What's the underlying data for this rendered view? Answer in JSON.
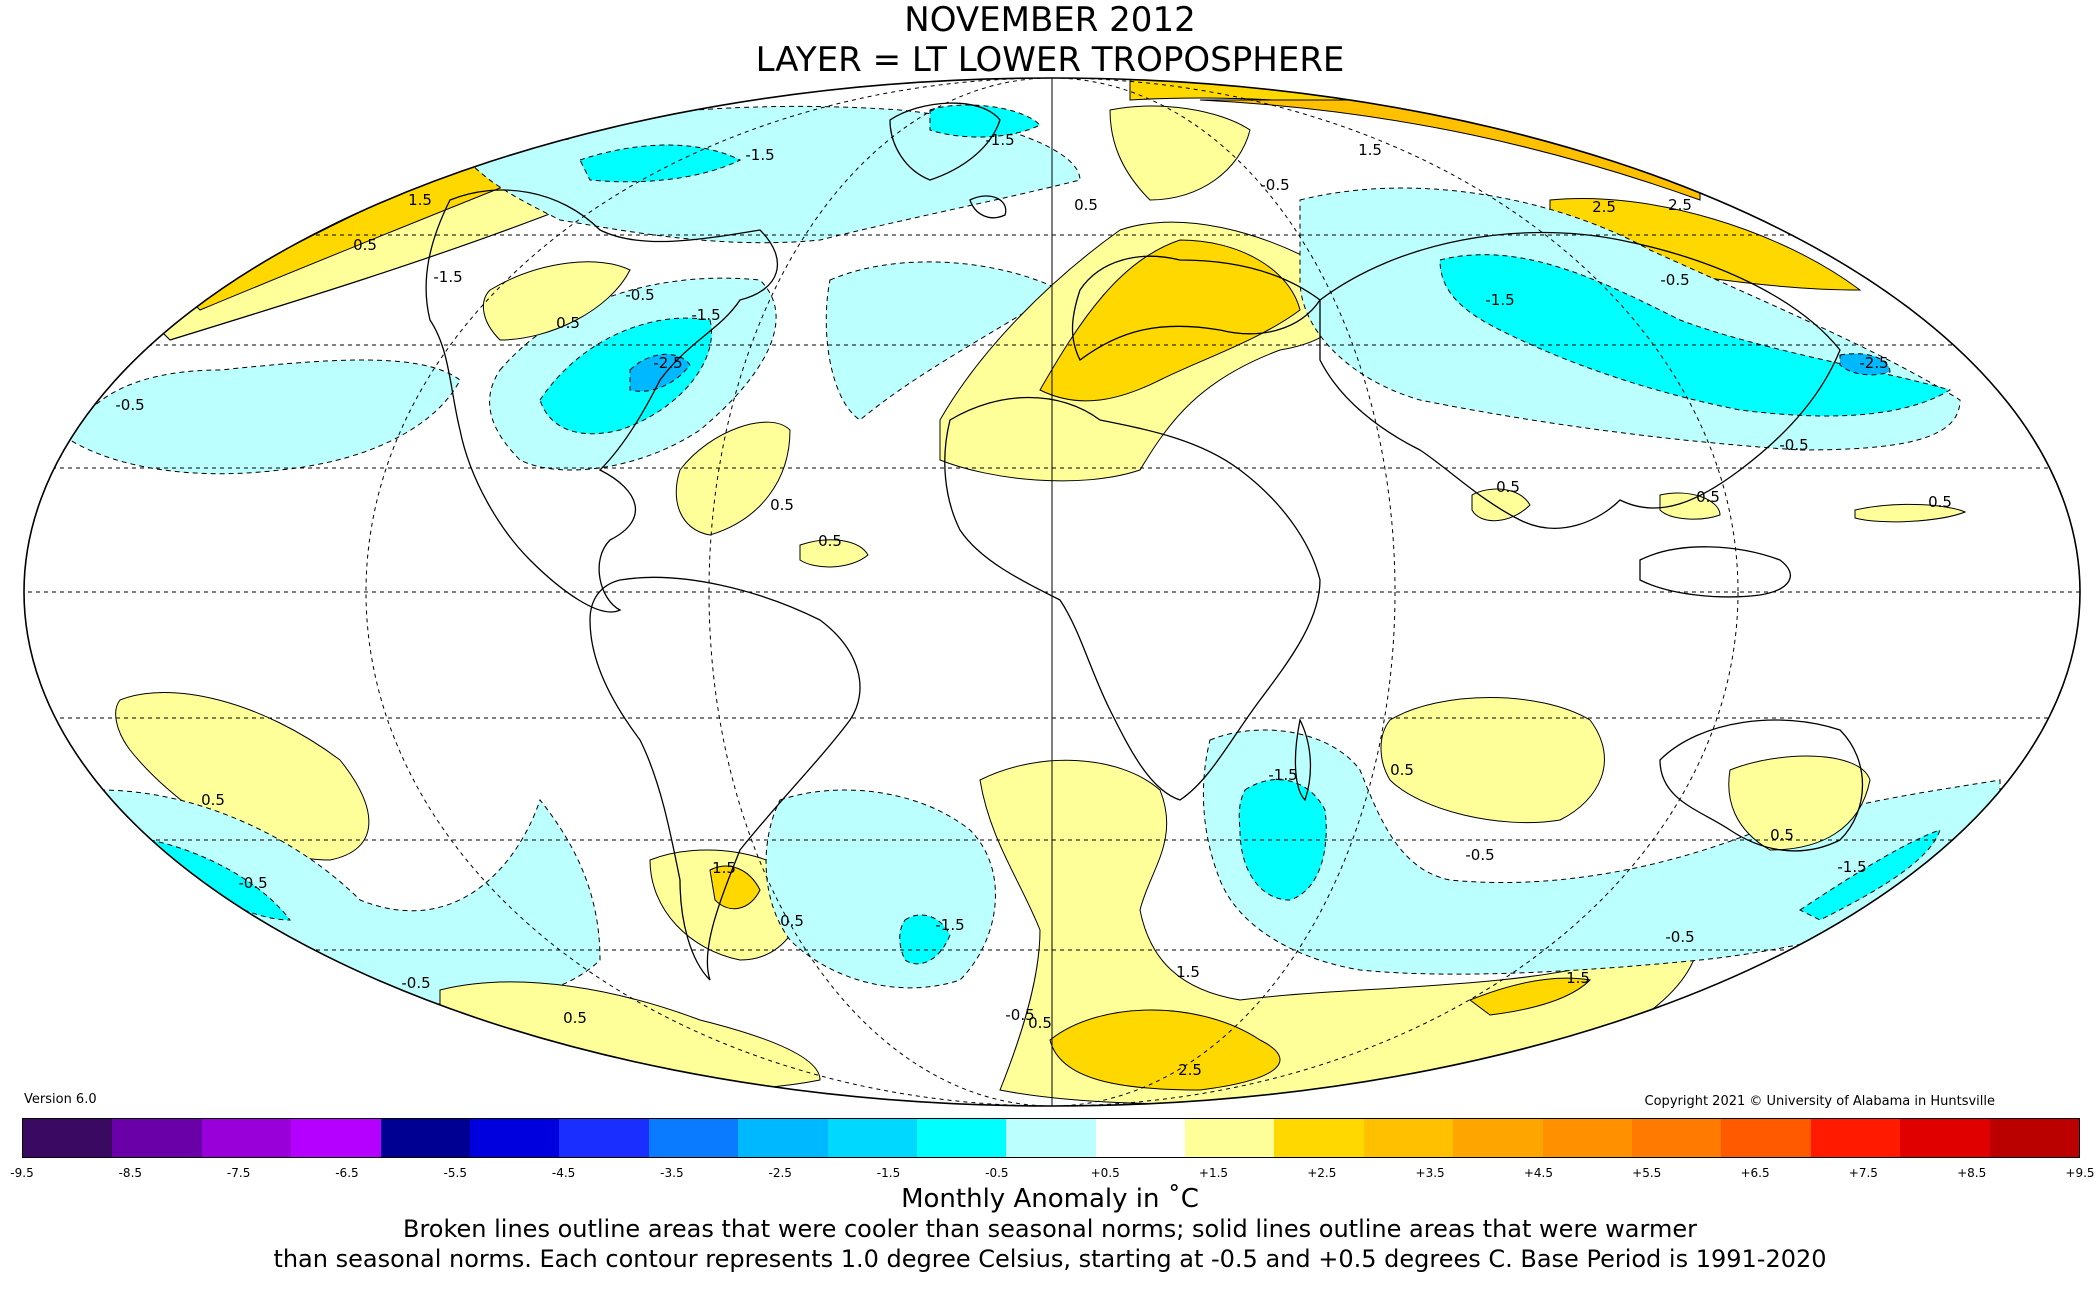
{
  "title_line1": "NOVEMBER 2012",
  "title_line2": "LAYER = LT LOWER TROPOSPHERE",
  "version": "Version 6.0",
  "copyright": "Copyright 2021 © University of Alabama in Huntsville",
  "colorbar": {
    "colors": [
      "#3a0a63",
      "#6a00a8",
      "#9900d9",
      "#b600ff",
      "#000093",
      "#0000df",
      "#1a2eff",
      "#0a7aff",
      "#00b8ff",
      "#00d8ff",
      "#00ffff",
      "#bbffff",
      "#ffffff",
      "#ffff99",
      "#ffd800",
      "#ffc000",
      "#ffa500",
      "#ff9100",
      "#ff7a00",
      "#ff5a00",
      "#ff1a00",
      "#e00000",
      "#bb0000"
    ],
    "ticks": [
      "-9.5",
      "-8.5",
      "-7.5",
      "-6.5",
      "-5.5",
      "-4.5",
      "-3.5",
      "-2.5",
      "-1.5",
      "-0.5",
      "+0.5",
      "+1.5",
      "+2.5",
      "+3.5",
      "+4.5",
      "+5.5",
      "+6.5",
      "+7.5",
      "+8.5",
      "+9.5"
    ],
    "tick_positions": [
      0,
      2,
      4,
      6,
      8,
      10,
      12,
      14,
      16,
      18,
      20,
      22,
      24,
      26,
      28,
      30,
      32,
      34,
      36,
      38
    ]
  },
  "units_label": "Monthly Anomaly in ˚C",
  "note_line1": "Broken lines outline areas that were cooler than seasonal norms; solid lines outline areas that were warmer",
  "note_line2": "than seasonal norms. Each contour represents 1.0 degree Celsius, starting at -0.5 and +0.5 degrees C. Base Period is 1991-2020",
  "contour_labels": [
    {
      "text": "2.5"
    },
    {
      "text": "-1.5"
    },
    {
      "text": "1.5"
    },
    {
      "text": "0.5"
    },
    {
      "text": "-1.5"
    },
    {
      "text": "-0.5"
    },
    {
      "text": "0.5"
    },
    {
      "text": "-1.5"
    },
    {
      "text": "-2.5"
    },
    {
      "text": "-0.5"
    },
    {
      "text": "0.5"
    },
    {
      "text": "0.5"
    },
    {
      "text": "-1.5"
    },
    {
      "text": "-0.5"
    },
    {
      "text": "1.5"
    },
    {
      "text": "1.5"
    },
    {
      "text": "2.5"
    },
    {
      "text": "2.5"
    },
    {
      "text": "0.5"
    },
    {
      "text": "-1.5"
    },
    {
      "text": "-0.5"
    },
    {
      "text": "-2.5"
    },
    {
      "text": "-0.5"
    },
    {
      "text": "0.5"
    },
    {
      "text": "0.5"
    },
    {
      "text": "0.5"
    },
    {
      "text": "0.5"
    },
    {
      "text": "1.5"
    },
    {
      "text": "0.5"
    },
    {
      "text": "-1.5"
    },
    {
      "text": "-0.5"
    },
    {
      "text": "0.5"
    },
    {
      "text": "-0.5"
    },
    {
      "text": "-0.5"
    },
    {
      "text": "0.5"
    },
    {
      "text": "-1.5"
    },
    {
      "text": "-1.5"
    },
    {
      "text": "0.5"
    },
    {
      "text": "1.5"
    },
    {
      "text": "1.5"
    },
    {
      "text": "2.5"
    },
    {
      "text": "0.5"
    },
    {
      "text": "-0.5"
    },
    {
      "text": "0.5"
    },
    {
      "text": "-0.5"
    }
  ]
}
